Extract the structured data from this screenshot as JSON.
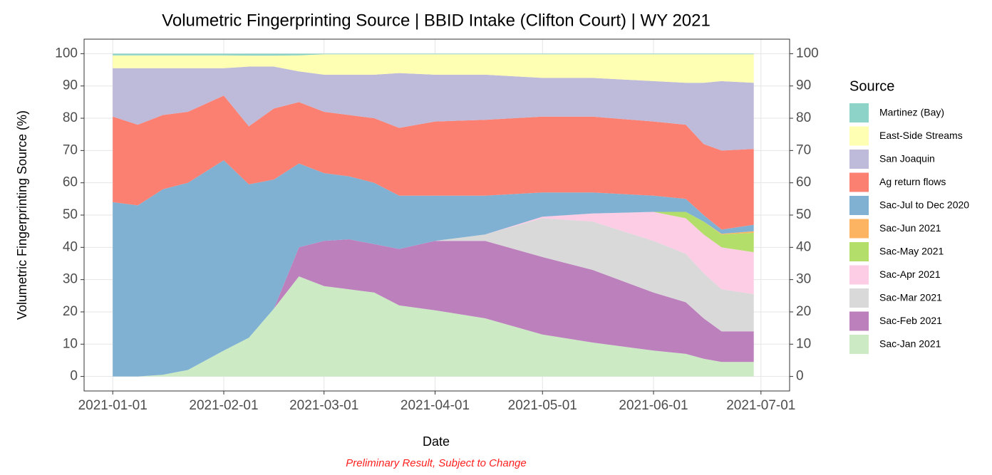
{
  "chart_data": {
    "type": "stacked-area",
    "title": "Volumetric Fingerprinting Source | BBID Intake (Clifton Court) | WY 2021",
    "x_label": "Date",
    "y_label": "Volumetric Fingerprinting Source (%)",
    "caption": "Preliminary Result, Subject to Change",
    "legend_title": "Source",
    "legend_position": "right",
    "grid": true,
    "x": [
      "2021-01-01",
      "2021-01-08",
      "2021-01-15",
      "2021-01-22",
      "2021-02-01",
      "2021-02-08",
      "2021-02-15",
      "2021-02-22",
      "2021-03-01",
      "2021-03-08",
      "2021-03-15",
      "2021-03-22",
      "2021-04-01",
      "2021-04-15",
      "2021-05-01",
      "2021-05-15",
      "2021-06-01",
      "2021-06-10",
      "2021-06-15",
      "2021-06-20",
      "2021-06-29"
    ],
    "xlim": [
      "2020-12-24",
      "2021-07-09"
    ],
    "xticks": [
      "2021-01-01",
      "2021-02-01",
      "2021-03-01",
      "2021-04-01",
      "2021-05-01",
      "2021-06-01",
      "2021-07-01"
    ],
    "ylim": [
      -4.5,
      104.5
    ],
    "yticks": [
      0,
      10,
      20,
      30,
      40,
      50,
      60,
      70,
      80,
      90,
      100
    ],
    "y2lim": [
      -4.5,
      104.5
    ],
    "y2ticks": [
      0,
      10,
      20,
      30,
      40,
      50,
      60,
      70,
      80,
      90,
      100
    ],
    "series": [
      {
        "name": "Martinez (Bay)",
        "color": "#8dd3c7",
        "values": [
          0.5,
          0.5,
          0.5,
          0.5,
          0.5,
          0.6,
          0.6,
          0.5,
          0.2,
          0.2,
          0.2,
          0.2,
          0.2,
          0.2,
          0.2,
          0.2,
          0.2,
          0.2,
          0.2,
          0.2,
          0.2
        ]
      },
      {
        "name": "East-Side Streams",
        "color": "#ffffb3",
        "values": [
          4,
          4,
          4,
          4,
          4,
          3.4,
          3.4,
          5,
          6.3,
          6.3,
          6.3,
          5.8,
          6.3,
          6.3,
          7.3,
          7.3,
          8.3,
          8.8,
          8.8,
          8.3,
          8.8
        ]
      },
      {
        "name": "San Joaquin",
        "color": "#bebada",
        "values": [
          15,
          17.5,
          14.5,
          13.5,
          8.5,
          18.5,
          13,
          9.5,
          11.5,
          12.5,
          13.5,
          17,
          14.5,
          14,
          12,
          12,
          12.5,
          13,
          19,
          21.5,
          20.5
        ]
      },
      {
        "name": "Ag return flows",
        "color": "#fb8072",
        "values": [
          26.5,
          25,
          23,
          22,
          20,
          18,
          22,
          19,
          19,
          19,
          20,
          21,
          23,
          23.5,
          23.5,
          23.5,
          23,
          23,
          22,
          24.5,
          23.5
        ]
      },
      {
        "name": "Sac-Jul to Dec 2020",
        "color": "#80b1d3",
        "values": [
          54,
          53,
          57.5,
          58,
          59,
          47.5,
          40,
          26,
          21,
          19.5,
          19,
          16.5,
          14,
          12,
          7.5,
          6.5,
          5,
          4,
          2,
          1.3,
          2
        ]
      },
      {
        "name": "Sac-Jun 2021",
        "color": "#fdb462",
        "values": [
          0,
          0,
          0,
          0,
          0,
          0,
          0,
          0,
          0,
          0,
          0,
          0,
          0,
          0,
          0,
          0,
          0,
          0,
          0,
          0.2,
          0.5
        ]
      },
      {
        "name": "Sac-May 2021",
        "color": "#b3de69",
        "values": [
          0,
          0,
          0,
          0,
          0,
          0,
          0,
          0,
          0,
          0,
          0,
          0,
          0,
          0,
          0,
          0,
          0,
          2,
          4,
          4,
          6
        ]
      },
      {
        "name": "Sac-Apr 2021",
        "color": "#fccde5",
        "values": [
          0,
          0,
          0,
          0,
          0,
          0,
          0,
          0,
          0,
          0,
          0,
          0,
          0,
          0,
          0.5,
          2.5,
          9,
          11,
          12,
          13,
          13
        ]
      },
      {
        "name": "Sac-Mar 2021",
        "color": "#d9d9d9",
        "values": [
          0,
          0,
          0,
          0,
          0,
          0,
          0,
          0,
          0,
          0,
          0,
          0,
          0,
          2,
          12,
          15,
          16,
          15,
          14,
          13,
          11.5
        ]
      },
      {
        "name": "Sac-Feb 2021",
        "color": "#bc80bd",
        "values": [
          0,
          0,
          0,
          0,
          0,
          0,
          0,
          9,
          14,
          15.5,
          15,
          17.5,
          21.5,
          24,
          24,
          22.5,
          18,
          16,
          12.5,
          9.5,
          9.5
        ]
      },
      {
        "name": "Sac-Jan 2021",
        "color": "#ccebc5",
        "values": [
          0,
          0,
          0.5,
          2,
          8,
          12,
          21,
          31,
          28,
          27,
          26,
          22,
          20.5,
          18,
          13,
          10.5,
          8,
          7,
          5.5,
          4.5,
          4.5
        ]
      }
    ]
  }
}
